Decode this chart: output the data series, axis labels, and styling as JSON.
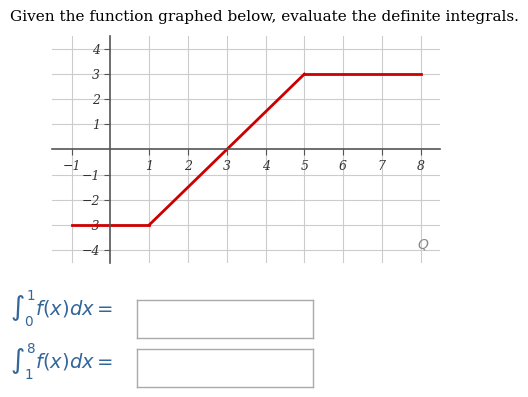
{
  "title": "Given the function graphed below, evaluate the definite integrals.",
  "title_fontsize": 11,
  "graph_segments": [
    {
      "x": [
        -1,
        1
      ],
      "y": [
        -3,
        -3
      ]
    },
    {
      "x": [
        1,
        5
      ],
      "y": [
        -3,
        3
      ]
    },
    {
      "x": [
        5,
        8
      ],
      "y": [
        3,
        3
      ]
    }
  ],
  "line_color": "#cc0000",
  "line_width": 2.0,
  "xlim": [
    -1.5,
    8.5
  ],
  "ylim": [
    -4.5,
    4.5
  ],
  "xticks": [
    -1,
    1,
    2,
    3,
    4,
    5,
    6,
    7,
    8
  ],
  "yticks": [
    -4,
    -3,
    -2,
    -1,
    1,
    2,
    3,
    4
  ],
  "grid_color": "#cccccc",
  "axis_color": "#555555",
  "background_color": "#ffffff",
  "integral1_lower": "0",
  "integral1_upper": "1",
  "integral2_lower": "1",
  "integral2_upper": "8"
}
